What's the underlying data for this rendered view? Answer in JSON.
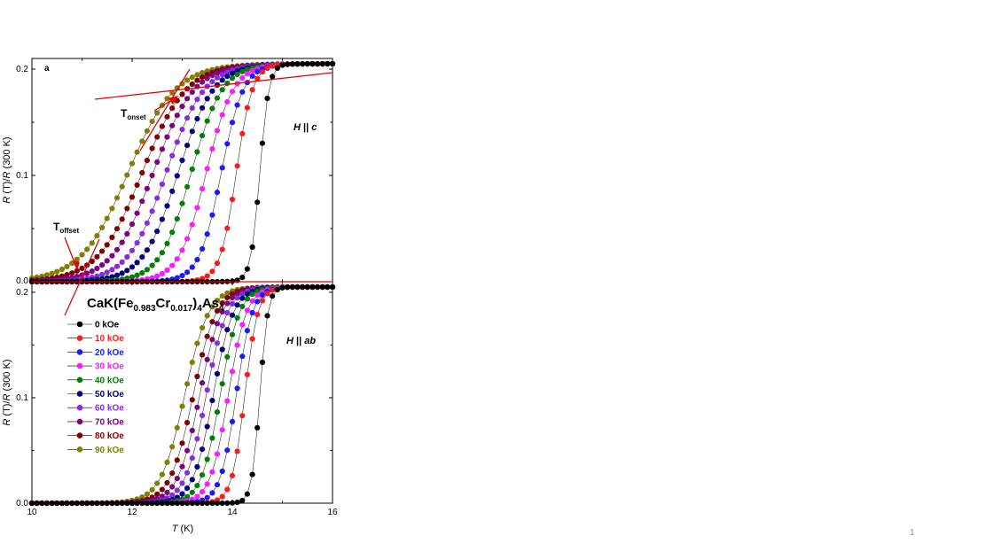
{
  "slide": {
    "page_number": "1"
  },
  "chart_data": [
    {
      "type": "line",
      "panel_label": "a",
      "field_label_italic": "H",
      "field_label_sep": " || ",
      "field_label_dir": "c",
      "ylabel_parts": [
        "R",
        " (T)/",
        "R",
        " (300 K)"
      ],
      "xlim": [
        10,
        16
      ],
      "ylim": [
        0,
        0.21
      ],
      "yticks": [
        0.0,
        0.1,
        0.2
      ],
      "ytick_labels": [
        "0.0",
        "0.1",
        "0.2"
      ],
      "grid": false,
      "annotations": [
        {
          "main": "T",
          "sub": "onset"
        },
        {
          "main": "T",
          "sub": "offset"
        }
      ],
      "series": [
        {
          "name": "0 kOe",
          "color": "#000000",
          "tc": 14.55,
          "w": 0.09
        },
        {
          "name": "10 kOe",
          "color": "#ff1a1a",
          "tc": 14.08,
          "w": 0.16
        },
        {
          "name": "20 kOe",
          "color": "#1a1aff",
          "tc": 13.78,
          "w": 0.22
        },
        {
          "name": "30 kOe",
          "color": "#ff1aff",
          "tc": 13.48,
          "w": 0.27
        },
        {
          "name": "40 kOe",
          "color": "#008000",
          "tc": 13.18,
          "w": 0.31
        },
        {
          "name": "50 kOe",
          "color": "#000080",
          "tc": 12.92,
          "w": 0.35
        },
        {
          "name": "60 kOe",
          "color": "#8a2be2",
          "tc": 12.68,
          "w": 0.38
        },
        {
          "name": "70 kOe",
          "color": "#800080",
          "tc": 12.42,
          "w": 0.41
        },
        {
          "name": "80 kOe",
          "color": "#800000",
          "tc": 12.2,
          "w": 0.44
        },
        {
          "name": "90 kOe",
          "color": "#808000",
          "tc": 11.92,
          "w": 0.47
        }
      ]
    },
    {
      "type": "line",
      "panel_label": "",
      "field_label_italic": "H",
      "field_label_sep": " || ",
      "field_label_dir": "ab",
      "ylabel_parts": [
        "R",
        " (T)/",
        "R",
        " (300 K)"
      ],
      "xlabel_parts": [
        "T",
        " (K)"
      ],
      "xlim": [
        10,
        16
      ],
      "ylim": [
        0,
        0.21
      ],
      "xticks": [
        10,
        12,
        14,
        16
      ],
      "xtick_labels": [
        "10",
        "12",
        "14",
        "16"
      ],
      "yticks": [
        0.0,
        0.1,
        0.2
      ],
      "ytick_labels": [
        "0.0",
        "0.1",
        "0.2"
      ],
      "grid": false,
      "compound": {
        "a": "CaK(Fe",
        "s1": "0.983",
        "b": "Cr",
        "s2": "0.017",
        "c": ")",
        "s3": "4",
        "d": "As",
        "s4": "4"
      },
      "legend_placement": "left",
      "series": [
        {
          "name": "0 kOe",
          "color": "#000000",
          "tc": 14.55,
          "w": 0.08
        },
        {
          "name": "10 kOe",
          "color": "#ff1a1a",
          "tc": 14.25,
          "w": 0.13
        },
        {
          "name": "20 kOe",
          "color": "#1a1aff",
          "tc": 14.08,
          "w": 0.16
        },
        {
          "name": "30 kOe",
          "color": "#ff1aff",
          "tc": 13.92,
          "w": 0.18
        },
        {
          "name": "40 kOe",
          "color": "#008000",
          "tc": 13.76,
          "w": 0.19
        },
        {
          "name": "50 kOe",
          "color": "#000080",
          "tc": 13.62,
          "w": 0.2
        },
        {
          "name": "60 kOe",
          "color": "#8a2be2",
          "tc": 13.48,
          "w": 0.21
        },
        {
          "name": "70 kOe",
          "color": "#800080",
          "tc": 13.35,
          "w": 0.22
        },
        {
          "name": "80 kOe",
          "color": "#800000",
          "tc": 13.22,
          "w": 0.23
        },
        {
          "name": "90 kOe",
          "color": "#808000",
          "tc": 13.05,
          "w": 0.24
        }
      ]
    }
  ]
}
